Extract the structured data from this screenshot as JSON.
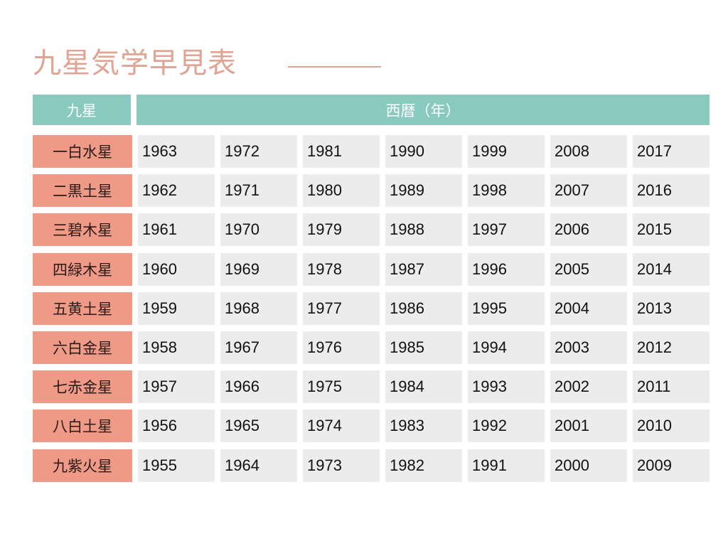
{
  "title": "九星気学早見表",
  "header": {
    "left": "九星",
    "right": "西暦（年）"
  },
  "colors": {
    "title": "#e2a392",
    "header_bg": "#88c9c0",
    "label_bg": "#ef9a87",
    "cell_bg": "#ececec"
  },
  "rows": [
    {
      "star": "一白水星",
      "years": [
        "1963",
        "1972",
        "1981",
        "1990",
        "1999",
        "2008",
        "2017"
      ]
    },
    {
      "star": "二黒土星",
      "years": [
        "1962",
        "1971",
        "1980",
        "1989",
        "1998",
        "2007",
        "2016"
      ]
    },
    {
      "star": "三碧木星",
      "years": [
        "1961",
        "1970",
        "1979",
        "1988",
        "1997",
        "2006",
        "2015"
      ]
    },
    {
      "star": "四緑木星",
      "years": [
        "1960",
        "1969",
        "1978",
        "1987",
        "1996",
        "2005",
        "2014"
      ]
    },
    {
      "star": "五黄土星",
      "years": [
        "1959",
        "1968",
        "1977",
        "1986",
        "1995",
        "2004",
        "2013"
      ]
    },
    {
      "star": "六白金星",
      "years": [
        "1958",
        "1967",
        "1976",
        "1985",
        "1994",
        "2003",
        "2012"
      ]
    },
    {
      "star": "七赤金星",
      "years": [
        "1957",
        "1966",
        "1975",
        "1984",
        "1993",
        "2002",
        "2011"
      ]
    },
    {
      "star": "八白土星",
      "years": [
        "1956",
        "1965",
        "1974",
        "1983",
        "1992",
        "2001",
        "2010"
      ]
    },
    {
      "star": "九紫火星",
      "years": [
        "1955",
        "1964",
        "1973",
        "1982",
        "1991",
        "2000",
        "2009"
      ]
    }
  ]
}
